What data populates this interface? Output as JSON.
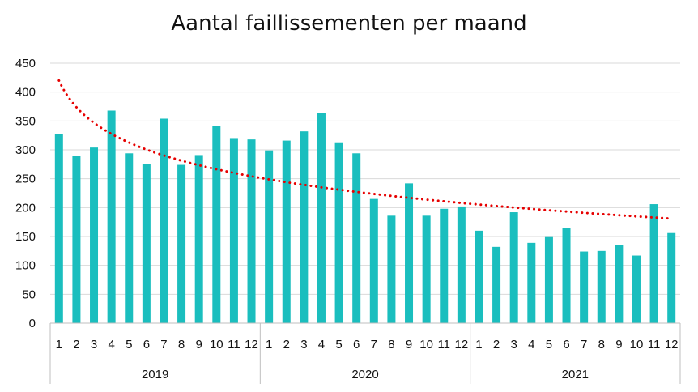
{
  "chart_data": {
    "type": "bar",
    "title": "Aantal faillissementen per maand",
    "xlabel": "",
    "ylabel": "",
    "ylim": [
      0,
      450
    ],
    "yticks": [
      0,
      50,
      100,
      150,
      200,
      250,
      300,
      350,
      400,
      450
    ],
    "grid": true,
    "legend": "none",
    "groups": [
      {
        "label": "2019",
        "months": [
          "1",
          "2",
          "3",
          "4",
          "5",
          "6",
          "7",
          "8",
          "9",
          "10",
          "11",
          "12"
        ]
      },
      {
        "label": "2020",
        "months": [
          "1",
          "2",
          "3",
          "4",
          "5",
          "6",
          "7",
          "8",
          "9",
          "10",
          "11",
          "12"
        ]
      },
      {
        "label": "2021",
        "months": [
          "1",
          "2",
          "3",
          "4",
          "5",
          "6",
          "7",
          "8",
          "9",
          "10",
          "11",
          "12"
        ]
      }
    ],
    "values": [
      327,
      290,
      304,
      368,
      294,
      276,
      354,
      274,
      291,
      342,
      319,
      318,
      299,
      316,
      332,
      364,
      313,
      294,
      215,
      186,
      242,
      186,
      198,
      202,
      160,
      132,
      192,
      139,
      149,
      164,
      124,
      125,
      135,
      117,
      206,
      156
    ],
    "trendline": {
      "type": "logarithmic",
      "style": "dotted",
      "start": 420,
      "end": 181
    },
    "colors": {
      "bar": "#1ABEBE",
      "trend": "#E60000",
      "grid": "#D9D9D9",
      "axis": "#BFBFBF"
    }
  }
}
